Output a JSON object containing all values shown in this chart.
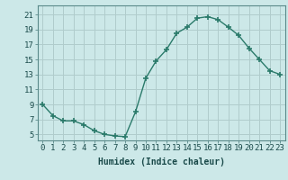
{
  "x": [
    0,
    1,
    2,
    3,
    4,
    5,
    6,
    7,
    8,
    9,
    10,
    11,
    12,
    13,
    14,
    15,
    16,
    17,
    18,
    19,
    20,
    21,
    22,
    23
  ],
  "y": [
    9,
    7.5,
    6.8,
    6.8,
    6.3,
    5.5,
    5.0,
    4.8,
    4.7,
    8.0,
    12.5,
    14.8,
    16.3,
    18.5,
    19.3,
    20.5,
    20.7,
    20.3,
    19.3,
    18.2,
    16.5,
    15.0,
    13.5,
    13.0
  ],
  "line_color": "#2a7a6a",
  "marker": "+",
  "marker_size": 5,
  "bg_color": "#cce8e8",
  "grid_color": "#b0cccc",
  "spine_color": "#5a8a8a",
  "xlabel": "Humidex (Indice chaleur)",
  "ylabel_ticks": [
    5,
    7,
    9,
    11,
    13,
    15,
    17,
    19,
    21
  ],
  "xtick_labels": [
    "0",
    "1",
    "2",
    "3",
    "4",
    "5",
    "6",
    "7",
    "8",
    "9",
    "10",
    "11",
    "12",
    "13",
    "14",
    "15",
    "16",
    "17",
    "18",
    "19",
    "20",
    "21",
    "22",
    "23"
  ],
  "xlim": [
    -0.5,
    23.5
  ],
  "ylim": [
    4.2,
    22.2
  ],
  "label_fontsize": 7,
  "tick_fontsize": 6.5
}
